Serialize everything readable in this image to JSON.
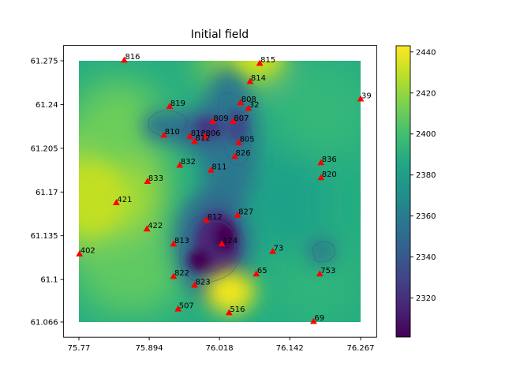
{
  "chart_data": {
    "type": "heatmap",
    "title": "Initial field",
    "xlabel": "",
    "ylabel": "",
    "xlim": [
      75.77,
      76.267
    ],
    "ylim": [
      61.066,
      61.275
    ],
    "x_ticks": [
      "75.77",
      "75.894",
      "76.018",
      "76.142",
      "76.267"
    ],
    "y_ticks": [
      "61.275",
      "61.24",
      "61.205",
      "61.17",
      "61.135",
      "61.1",
      "61.066"
    ],
    "colorbar": {
      "min": 2301,
      "max": 2443,
      "ticks": [
        "2320",
        "2340",
        "2360",
        "2380",
        "2400",
        "2420",
        "2440"
      ],
      "colormap": "viridis"
    },
    "field_extent": {
      "x": [
        75.77,
        76.267
      ],
      "y": [
        61.066,
        61.275
      ]
    },
    "marker_color": "#ff0000",
    "stations": [
      {
        "label": "816",
        "x": 75.85,
        "y": 61.2755
      },
      {
        "label": "815",
        "x": 76.089,
        "y": 61.273
      },
      {
        "label": "814",
        "x": 76.072,
        "y": 61.2585
      },
      {
        "label": "39",
        "x": 76.267,
        "y": 61.2445
      },
      {
        "label": "819",
        "x": 75.93,
        "y": 61.2385
      },
      {
        "label": "808",
        "x": 76.055,
        "y": 61.2415
      },
      {
        "label": "32",
        "x": 76.069,
        "y": 61.237
      },
      {
        "label": "809",
        "x": 76.006,
        "y": 61.2265
      },
      {
        "label": "807",
        "x": 76.042,
        "y": 61.2265
      },
      {
        "label": "810",
        "x": 75.92,
        "y": 61.2155
      },
      {
        "label": "818",
        "x": 75.966,
        "y": 61.2145
      },
      {
        "label": "806",
        "x": 75.992,
        "y": 61.2145
      },
      {
        "label": "812",
        "x": 75.974,
        "y": 61.2105
      },
      {
        "label": "805",
        "x": 76.052,
        "y": 61.2095
      },
      {
        "label": "826",
        "x": 76.045,
        "y": 61.1985
      },
      {
        "label": "836",
        "x": 76.197,
        "y": 61.1935
      },
      {
        "label": "832",
        "x": 75.948,
        "y": 61.1915
      },
      {
        "label": "811",
        "x": 76.003,
        "y": 61.1875
      },
      {
        "label": "820",
        "x": 76.197,
        "y": 61.1815
      },
      {
        "label": "833",
        "x": 75.891,
        "y": 61.1785
      },
      {
        "label": "421",
        "x": 75.836,
        "y": 61.1615
      },
      {
        "label": "827",
        "x": 76.05,
        "y": 61.1515
      },
      {
        "label": "812",
        "x": 75.995,
        "y": 61.1475
      },
      {
        "label": "422",
        "x": 75.89,
        "y": 61.1405
      },
      {
        "label": "813",
        "x": 75.937,
        "y": 61.1285
      },
      {
        "label": "124",
        "x": 76.022,
        "y": 61.1285
      },
      {
        "label": "73",
        "x": 76.112,
        "y": 61.1225
      },
      {
        "label": "402",
        "x": 75.771,
        "y": 61.1205
      },
      {
        "label": "65",
        "x": 76.083,
        "y": 61.1045
      },
      {
        "label": "753",
        "x": 76.195,
        "y": 61.1045
      },
      {
        "label": "822",
        "x": 75.937,
        "y": 61.1025
      },
      {
        "label": "823",
        "x": 75.974,
        "y": 61.0955
      },
      {
        "label": "507",
        "x": 75.945,
        "y": 61.0765
      },
      {
        "label": "516",
        "x": 76.035,
        "y": 61.0735
      },
      {
        "label": "69",
        "x": 76.184,
        "y": 61.0665
      }
    ]
  }
}
